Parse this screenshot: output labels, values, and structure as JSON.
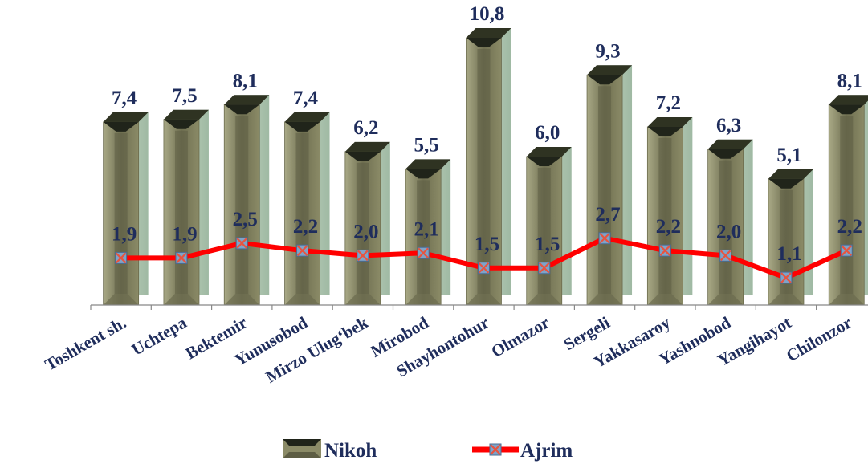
{
  "chart_data": {
    "type": "bar",
    "categories": [
      "Toshkent sh.",
      "Uchtepa",
      "Bektemir",
      "Yunusobod",
      "Mirzo Ulug‘bek",
      "Mirobod",
      "Shayhontohur",
      "Olmazor",
      "Sergeli",
      "Yakkasaroy",
      "Yashnobod",
      "Yangihayot",
      "Chilonzor"
    ],
    "series": [
      {
        "name": "Nikoh",
        "type": "bar",
        "values": [
          7.4,
          7.5,
          8.1,
          7.4,
          6.2,
          5.5,
          10.8,
          6.0,
          9.3,
          7.2,
          6.3,
          5.1,
          8.1
        ],
        "labels": [
          "7,4",
          "7,5",
          "8,1",
          "7,4",
          "6,2",
          "5,5",
          "10,8",
          "6,0",
          "9,3",
          "7,2",
          "6,3",
          "5,1",
          "8,1"
        ],
        "color": "#8b8b65"
      },
      {
        "name": "Ajrim",
        "type": "line",
        "values": [
          1.9,
          1.9,
          2.5,
          2.2,
          2.0,
          2.1,
          1.5,
          1.5,
          2.7,
          2.2,
          2.0,
          1.1,
          2.2
        ],
        "labels": [
          "1,9",
          "1,9",
          "2,5",
          "2,2",
          "2,0",
          "2,1",
          "1,5",
          "1,5",
          "2,7",
          "2,2",
          "2,0",
          "1,1",
          "2,2"
        ],
        "color": "#ff0000"
      }
    ],
    "legend": [
      "Nikoh",
      "Ajrim"
    ],
    "legend_position": "bottom",
    "title": "",
    "xlabel": "",
    "ylabel": "",
    "ylim": [
      0,
      11.6
    ],
    "grid": false
  }
}
